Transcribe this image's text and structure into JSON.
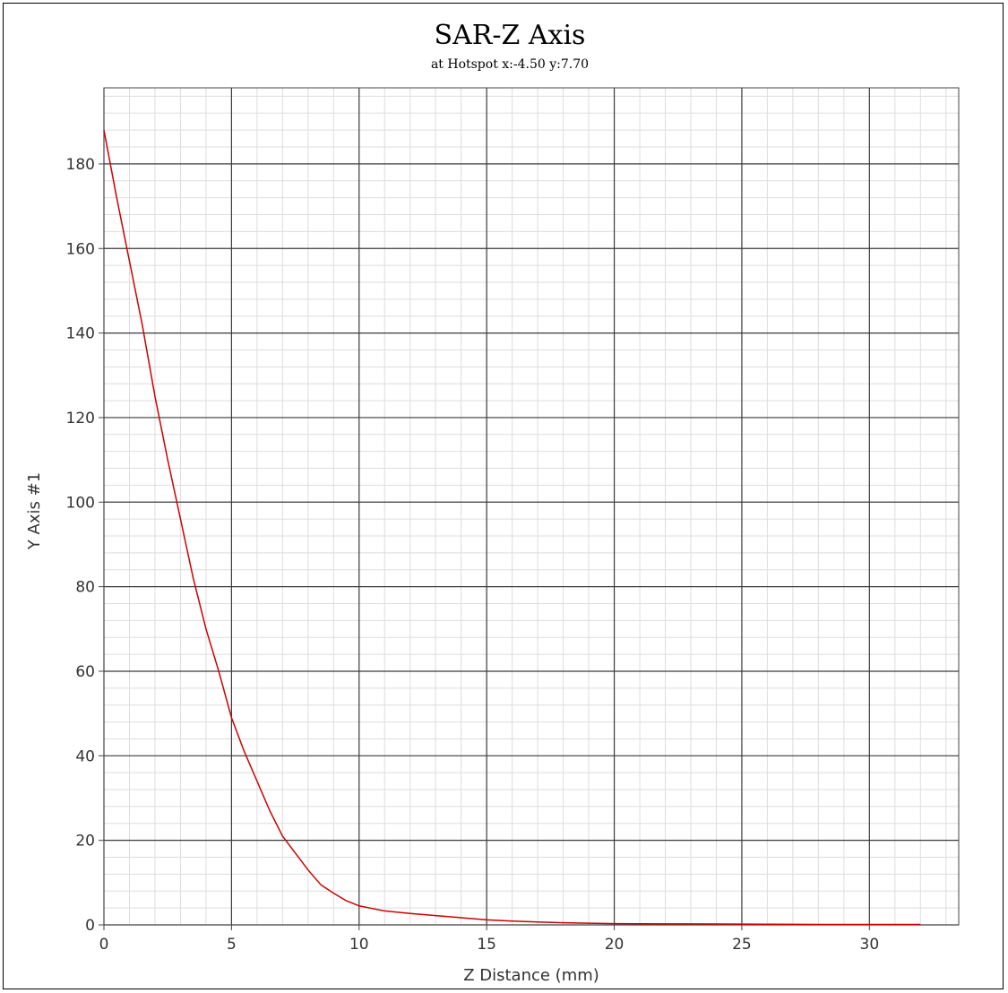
{
  "chart_data": {
    "type": "line",
    "title": "SAR-Z Axis",
    "subtitle": "at Hotspot x:-4.50 y:7.70",
    "xlabel": "Z Distance (mm)",
    "ylabel": "Y Axis #1",
    "xlim": [
      0,
      33.5
    ],
    "ylim": [
      0,
      198
    ],
    "x_ticks": [
      0,
      5,
      10,
      15,
      20,
      25,
      30
    ],
    "y_ticks": [
      0,
      20,
      40,
      60,
      80,
      100,
      120,
      140,
      160,
      180
    ],
    "grid": true,
    "series": [
      {
        "color": "#cc0000",
        "x": [
          0,
          0.5,
          1,
          1.5,
          2,
          2.5,
          3,
          3.5,
          4,
          4.5,
          5,
          5.5,
          6,
          6.5,
          7,
          7.5,
          8,
          8.5,
          9,
          9.5,
          10,
          11,
          12,
          13,
          14,
          15,
          16,
          17,
          18,
          19,
          20,
          22,
          24,
          26,
          28,
          30,
          32
        ],
        "y": [
          188,
          172,
          157,
          142,
          125,
          110,
          96,
          82,
          70,
          60,
          49,
          41,
          34,
          27,
          21,
          17,
          13,
          9.5,
          7.5,
          5.7,
          4.5,
          3.3,
          2.7,
          2.2,
          1.7,
          1.2,
          0.9,
          0.7,
          0.5,
          0.4,
          0.3,
          0.25,
          0.2,
          0.15,
          0.1,
          0.1,
          0.1
        ]
      }
    ]
  }
}
